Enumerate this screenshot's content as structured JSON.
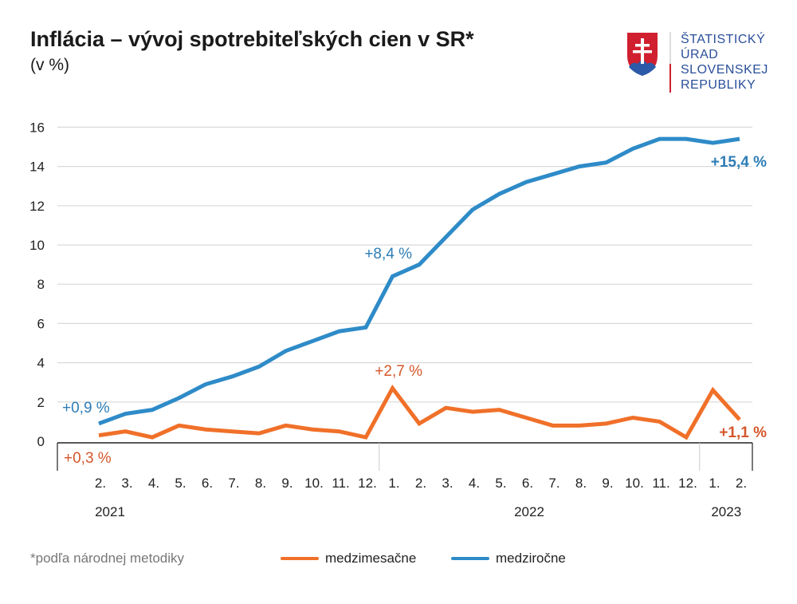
{
  "header": {
    "title": "Inflácia – vývoj spotrebiteľských cien v SR*",
    "subtitle": "(v %)"
  },
  "logo": {
    "lines": [
      "ŠTATISTICKÝ",
      "ÚRAD",
      "SLOVENSKEJ",
      "REPUBLIKY"
    ]
  },
  "footnote": "*podľa národnej metodiky",
  "colors": {
    "medzimesacne": "#f07029",
    "medzirocne": "#2e8bc8",
    "label_orange": "#d4572a",
    "label_blue": "#2e7db5"
  },
  "chart_data": {
    "type": "line",
    "categories": [
      "2.",
      "3.",
      "4.",
      "5.",
      "6.",
      "7.",
      "8.",
      "9.",
      "10.",
      "11.",
      "12.",
      "1.",
      "2.",
      "3.",
      "4.",
      "5.",
      "6.",
      "7.",
      "8.",
      "9.",
      "10.",
      "11.",
      "12.",
      "1.",
      "2."
    ],
    "year_labels": [
      "2021",
      "2022",
      "2023"
    ],
    "ylim": [
      0,
      16
    ],
    "yticks": [
      "0",
      "2",
      "4",
      "6",
      "8",
      "10",
      "12",
      "14",
      "16"
    ],
    "grid": true,
    "legend_placement": "bottom",
    "series": [
      {
        "name": "medzimesačne",
        "color": "#f07029",
        "values": [
          0.3,
          0.5,
          0.2,
          0.8,
          0.6,
          0.5,
          0.4,
          0.8,
          0.6,
          0.5,
          0.2,
          2.7,
          0.9,
          1.7,
          1.5,
          1.6,
          1.2,
          0.8,
          0.8,
          0.9,
          1.2,
          1.0,
          0.2,
          2.6,
          1.1
        ]
      },
      {
        "name": "medziročne",
        "color": "#2e8bc8",
        "values": [
          0.9,
          1.4,
          1.6,
          2.2,
          2.9,
          3.3,
          3.8,
          4.6,
          5.1,
          5.6,
          5.8,
          8.4,
          9.0,
          10.4,
          11.8,
          12.6,
          13.2,
          13.6,
          14.0,
          14.2,
          14.9,
          15.4,
          15.4,
          15.2,
          15.4
        ]
      }
    ],
    "annotations": [
      {
        "text": "+0,9 %",
        "series": "medziročne",
        "index": 0
      },
      {
        "text": "+8,4 %",
        "series": "medziročne",
        "index": 11
      },
      {
        "text": "+15,4 %",
        "series": "medziročne",
        "index": 24
      },
      {
        "text": "+0,3 %",
        "series": "medzimesačne",
        "index": 0
      },
      {
        "text": "+2,7 %",
        "series": "medzimesačne",
        "index": 11
      },
      {
        "text": "+1,1 %",
        "series": "medzimesačne",
        "index": 24
      }
    ]
  }
}
